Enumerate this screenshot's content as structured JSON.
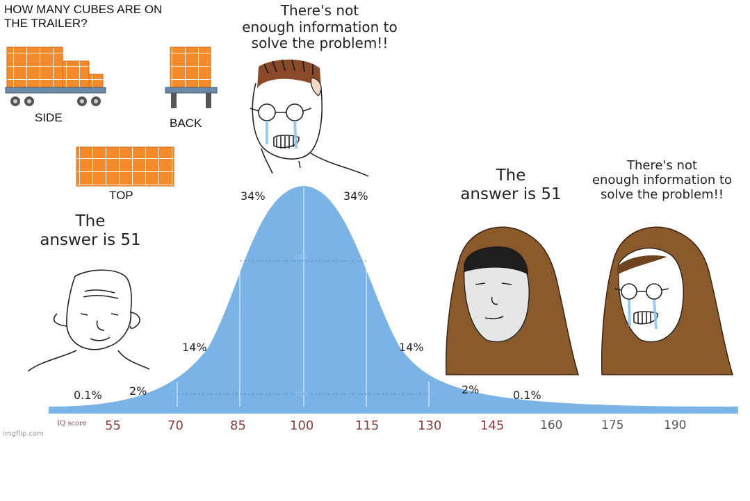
{
  "puzzle": {
    "question": "HOW MANY CUBES ARE ON\nTHE TRAILER?",
    "side_label": "SIDE",
    "back_label": "BACK",
    "top_label": "TOP"
  },
  "characters": {
    "left_low": {
      "quote": "The\nanswer is 51"
    },
    "middle": {
      "quote": "There's not\nenough information to\nsolve the problem!!"
    },
    "right_low": {
      "quote": "The\nanswer is 51"
    },
    "right_high": {
      "quote": "There's not\nenough information to\nsolve the problem!!"
    }
  },
  "bell_curve": {
    "percent_labels": {
      "far_left": "0.1%",
      "left_2": "2%",
      "left_14": "14%",
      "left_34": "34%",
      "right_34": "34%",
      "right_14": "14%",
      "right_2": "2%",
      "far_right": "0.1%",
      "inner_68": "68%",
      "inner_95": "95%"
    },
    "axis_label": "IQ score",
    "iq_ticks": [
      "55",
      "70",
      "85",
      "100",
      "115",
      "130",
      "145",
      "160",
      "175",
      "190"
    ]
  },
  "colors": {
    "curve_fill": "#7ab3e6",
    "cube_orange": "#f58a2a",
    "hood_brown": "#8a5a2b",
    "tick_red": "#8b3a3a"
  },
  "watermark": "imgflip.com"
}
